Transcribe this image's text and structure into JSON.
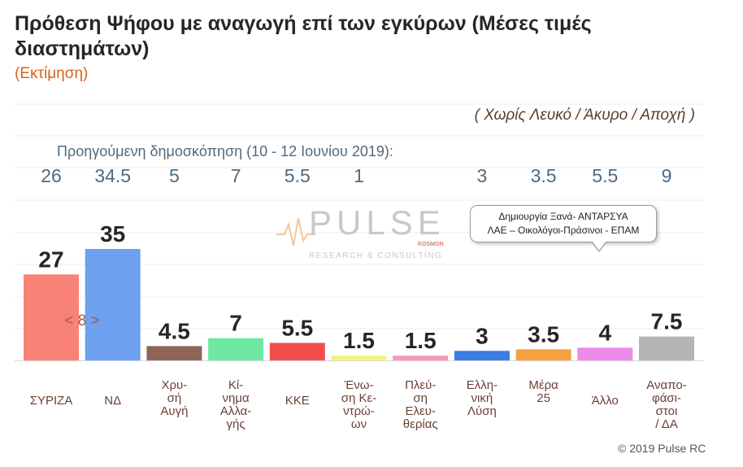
{
  "title": "Πρόθεση Ψήφου με αναγωγή επί των εγκύρων (Μέσες τιμές διαστημάτων)",
  "subtitle": "(Εκτίμηση)",
  "exclusion_note": "( Χωρίς Λευκό / Άκυρο / Αποχή )",
  "previous_poll_label": "Προηγούμενη δημοσκόπηση (10 - 12 Ιουνίου 2019):",
  "callout": {
    "line1": "Δημιουργία Ξανά-  ΑΝΤΑΡΣΥΑ",
    "line2": "ΛΑΕ – Οικολόγοι-Πράσινοι - ΕΠΑΜ"
  },
  "logo": {
    "name": "PULSE",
    "tag": "KOSMON",
    "tagline": "RESEARCH & CONSULTING"
  },
  "copyright": "© 2019 Pulse RC",
  "colors": {
    "previous_values": "#4e6a80",
    "category_labels": "#6b3f33",
    "value_labels": "#262626",
    "accent": "#d9631c"
  },
  "chart_data": {
    "type": "bar",
    "categories": [
      [
        "ΣΥΡΙΖΑ"
      ],
      [
        "ΝΔ"
      ],
      [
        "Χρυ-",
        "σή",
        "Αυγή"
      ],
      [
        "Κί-",
        "νημα",
        "Αλλα-",
        "γής"
      ],
      [
        "ΚΚΕ"
      ],
      [
        "Ένω-",
        "ση Κε-",
        "ντρώ-",
        "ων"
      ],
      [
        "Πλεύ-",
        "ση",
        "Ελευ-",
        "θερίας"
      ],
      [
        "Ελλη-",
        "νική",
        "Λύση"
      ],
      [
        "Μέρα",
        "25"
      ],
      [
        "Άλλο"
      ],
      [
        "Αναπο-",
        "φάσι-",
        "στοι",
        "/ ΔΑ"
      ]
    ],
    "values": [
      27,
      35,
      4.5,
      7,
      5.5,
      1.5,
      1.5,
      3,
      3.5,
      4,
      7.5
    ],
    "value_labels": [
      "27",
      "35",
      "4.5",
      "7",
      "5.5",
      "1.5",
      "1.5",
      "3",
      "3.5",
      "4",
      "7.5"
    ],
    "previous_values": [
      "26",
      "34.5",
      "5",
      "7",
      "5.5",
      "1",
      "",
      "3",
      "3.5",
      "5.5",
      "9"
    ],
    "colors": [
      "#f98276",
      "#6ea1ef",
      "#8d6658",
      "#6fe8a3",
      "#f24e4e",
      "#f3f27a",
      "#f49ab8",
      "#3b7de2",
      "#f7a23e",
      "#ec8ae7",
      "#b5b5b5"
    ],
    "difference_annotation": "< 8 >",
    "ylim": [
      0,
      40
    ],
    "grid": true
  }
}
